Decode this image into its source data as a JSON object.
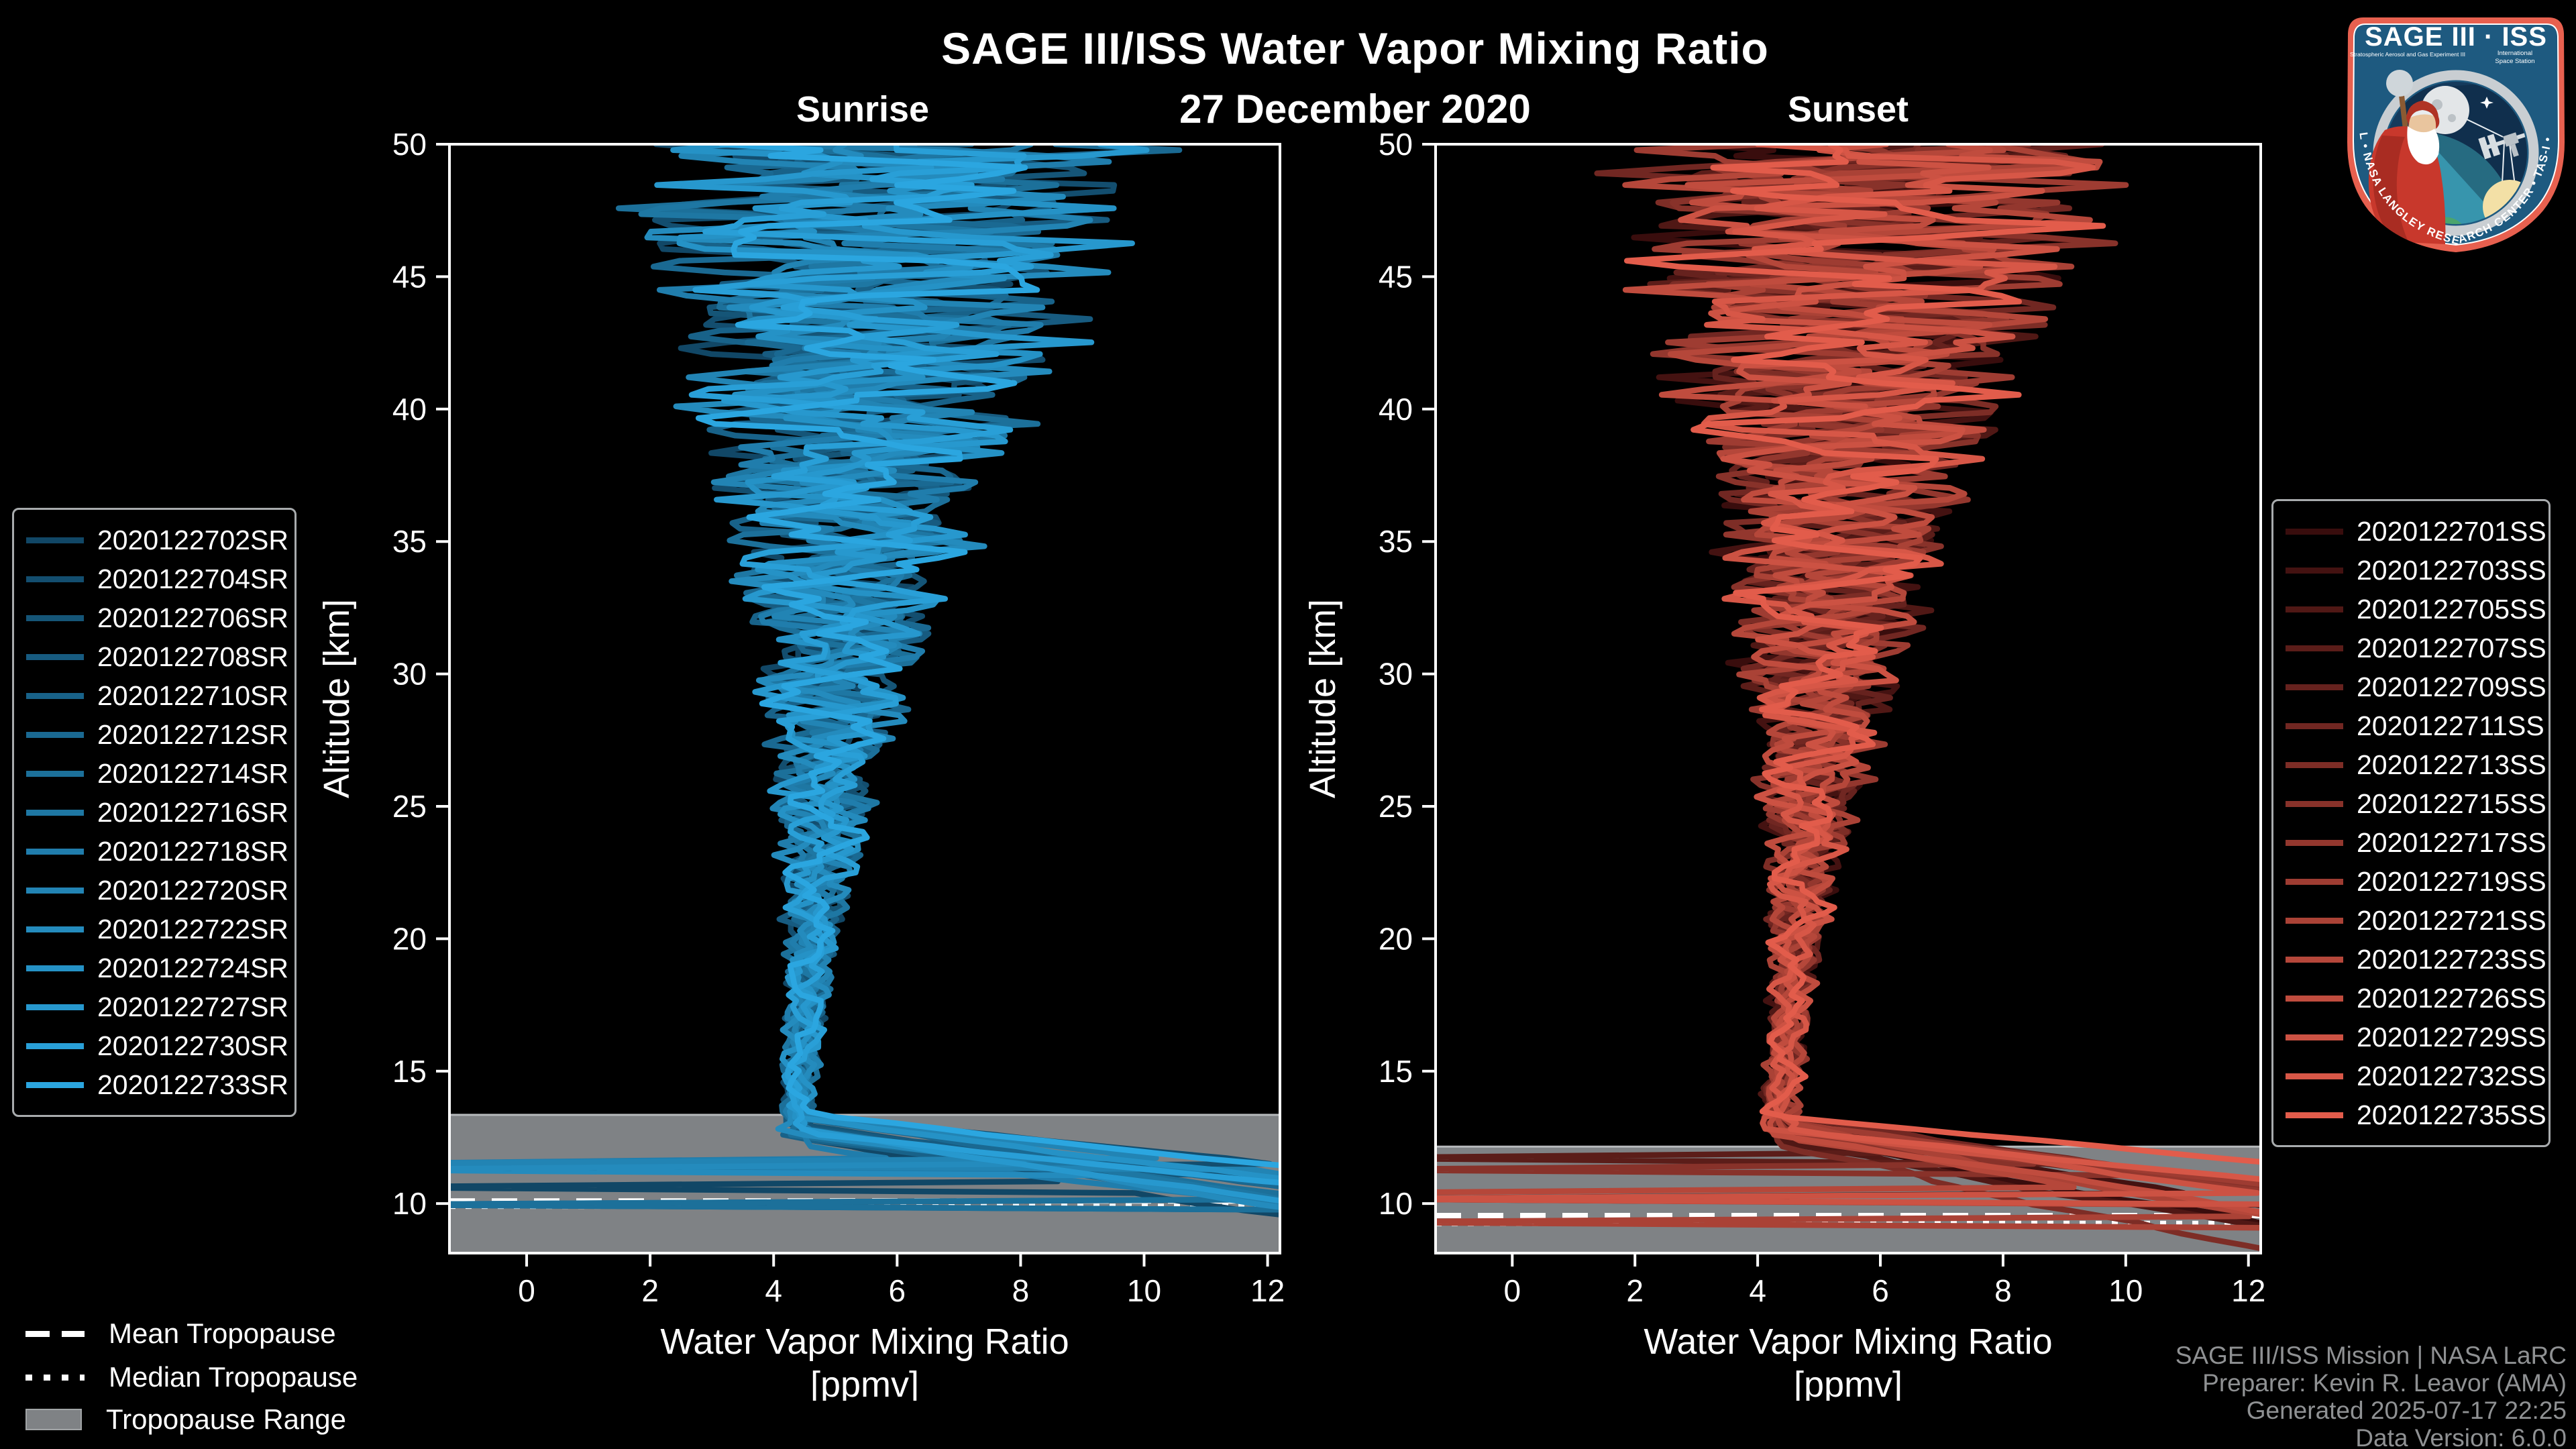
{
  "header": {
    "title": "SAGE III/ISS Water Vapor Mixing Ratio",
    "subtitle": "27 December 2020",
    "left_panel_title": "Sunrise",
    "right_panel_title": "Sunset"
  },
  "colors": {
    "background": "#000000",
    "text": "#ffffff",
    "muted_text": "#8f9193",
    "spine": "#ffffff",
    "tropopause_band": "#7f8285",
    "tropopause_band_edge": "#b7babc",
    "legend_border": "#a8abad",
    "sunrise_accent": "#2ba6e0",
    "sunset_accent": "#e25c4b"
  },
  "axes": {
    "xlabel_line1": "Water Vapor Mixing Ratio",
    "xlabel_line2": "[ppmv]",
    "ylabel": "Altitude [km]",
    "xticks": [
      0,
      2,
      4,
      6,
      8,
      10,
      12
    ],
    "yticks": [
      10,
      15,
      20,
      25,
      30,
      35,
      40,
      45,
      50
    ],
    "xlim": [
      -1.25,
      12.2
    ],
    "ylim": [
      8.13,
      50
    ]
  },
  "chart_data": [
    {
      "type": "line",
      "panel": "sunrise",
      "title": "Sunrise",
      "xlabel": "Water Vapor Mixing Ratio [ppmv]",
      "ylabel": "Altitude [km]",
      "xlim": [
        -1.25,
        12.2
      ],
      "ylim": [
        8.13,
        50
      ],
      "grid": false,
      "legend_position": "outside-left",
      "tropopause": {
        "mean_km": 10.1,
        "median_km": 9.9,
        "range_top_km": 13.35,
        "range_bottom_km": 8.13
      },
      "mean_profile": {
        "altitude_km": [
          50,
          45,
          40,
          35,
          30,
          25,
          20,
          15,
          13,
          12,
          11,
          10,
          9
        ],
        "ppmv": [
          5.8,
          5.7,
          5.9,
          5.6,
          5.1,
          4.8,
          4.6,
          4.4,
          4.4,
          4.9,
          6.8,
          9.0,
          11.5
        ]
      },
      "spread_ppmv_at_altitude": {
        "50": 10.5,
        "40": 7.0,
        "30": 3.0,
        "20": 1.2,
        "15": 0.9
      },
      "series": [
        {
          "name": "2020122702SR",
          "color": "#114766"
        },
        {
          "name": "2020122704SR",
          "color": "#134e6f"
        },
        {
          "name": "2020122706SR",
          "color": "#155577"
        },
        {
          "name": "2020122708SR",
          "color": "#175b80"
        },
        {
          "name": "2020122710SR",
          "color": "#186289"
        },
        {
          "name": "2020122712SR",
          "color": "#1a6992"
        },
        {
          "name": "2020122714SR",
          "color": "#1c709a"
        },
        {
          "name": "2020122716SR",
          "color": "#1e77a3"
        },
        {
          "name": "2020122718SR",
          "color": "#207dac"
        },
        {
          "name": "2020122720SR",
          "color": "#2284b4"
        },
        {
          "name": "2020122722SR",
          "color": "#248bbd"
        },
        {
          "name": "2020122724SR",
          "color": "#2592c6"
        },
        {
          "name": "2020122727SR",
          "color": "#2798ce"
        },
        {
          "name": "2020122730SR",
          "color": "#299fd7"
        },
        {
          "name": "2020122733SR",
          "color": "#2ba6e0"
        }
      ]
    },
    {
      "type": "line",
      "panel": "sunset",
      "title": "Sunset",
      "xlabel": "Water Vapor Mixing Ratio [ppmv]",
      "ylabel": "Altitude [km]",
      "xlim": [
        -1.25,
        12.2
      ],
      "ylim": [
        8.13,
        50
      ],
      "grid": false,
      "legend_position": "outside-right",
      "tropopause": {
        "mean_km": 9.55,
        "median_km": 9.25,
        "range_top_km": 12.15,
        "range_bottom_km": 8.13
      },
      "mean_profile": {
        "altitude_km": [
          50,
          45,
          40,
          35,
          30,
          25,
          20,
          15,
          13,
          12,
          11,
          10,
          9
        ],
        "ppmv": [
          5.9,
          5.8,
          6.0,
          5.6,
          5.2,
          4.8,
          4.5,
          4.3,
          4.3,
          5.0,
          7.0,
          9.5,
          12.0
        ]
      },
      "spread_ppmv_at_altitude": {
        "50": 10.5,
        "40": 7.5,
        "30": 3.2,
        "20": 1.3,
        "15": 1.0
      },
      "series": [
        {
          "name": "2020122701SS",
          "color": "#390d0d"
        },
        {
          "name": "2020122703SS",
          "color": "#441211"
        },
        {
          "name": "2020122705SS",
          "color": "#501815"
        },
        {
          "name": "2020122707SS",
          "color": "#5b1d19"
        },
        {
          "name": "2020122709SS",
          "color": "#66221e"
        },
        {
          "name": "2020122711SS",
          "color": "#712722"
        },
        {
          "name": "2020122713SS",
          "color": "#7d2d26"
        },
        {
          "name": "2020122715SS",
          "color": "#88322a"
        },
        {
          "name": "2020122717SS",
          "color": "#93372e"
        },
        {
          "name": "2020122719SS",
          "color": "#9e3c32"
        },
        {
          "name": "2020122721SS",
          "color": "#aa4236"
        },
        {
          "name": "2020122723SS",
          "color": "#b5473a"
        },
        {
          "name": "2020122726SS",
          "color": "#c04c3e"
        },
        {
          "name": "2020122729SS",
          "color": "#cc5243"
        },
        {
          "name": "2020122732SS",
          "color": "#d75747"
        },
        {
          "name": "2020122735SS",
          "color": "#e25c4b"
        }
      ]
    }
  ],
  "tropopause_legend": {
    "mean_label": "Mean Tropopause",
    "median_label": "Median Tropopause",
    "range_label": "Tropopause Range"
  },
  "attribution": {
    "line1": "SAGE III/ISS Mission | NASA LaRC",
    "line2": "Preparer: Kevin R. Leavor (AMA)",
    "line3": "Generated 2025-07-17 22:25",
    "line4": "Data Version: 6.0.0"
  },
  "logo": {
    "title": "SAGE III · ISS",
    "subtitle_left": "Stratospheric Aerosol and Gas Experiment III",
    "subtitle_right_line1": "International",
    "subtitle_right_line2": "Space Station",
    "border_text": "BALL • NASA LANGLEY RESEARCH CENTER • TAS-I • ESA"
  }
}
